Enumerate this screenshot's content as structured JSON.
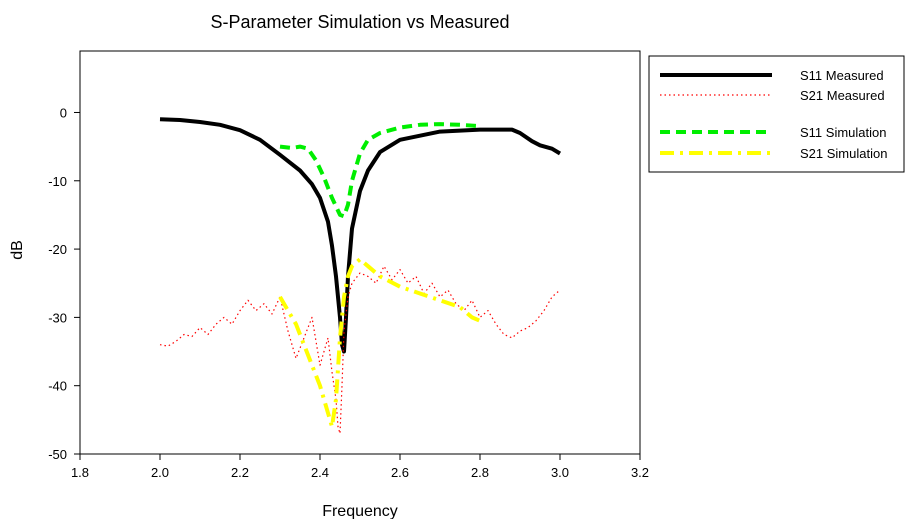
{
  "chart_data": {
    "type": "line",
    "title": "S-Parameter Simulation vs Measured",
    "xlabel": "Frequency",
    "ylabel": "dB",
    "xlim": [
      1.8,
      3.2
    ],
    "ylim": [
      -50,
      9
    ],
    "xticks": [
      "1.8",
      "2.0",
      "2.2",
      "2.4",
      "2.6",
      "2.8",
      "3.0",
      "3.2"
    ],
    "xtick_values": [
      1.8,
      2.0,
      2.2,
      2.4,
      2.6,
      2.8,
      3.0,
      3.2
    ],
    "yticks": [
      "0",
      "-10",
      "-20",
      "-30",
      "-40",
      "-50"
    ],
    "ytick_values": [
      0,
      -10,
      -20,
      -30,
      -40,
      -50
    ],
    "grid": false,
    "legend_position": "right-outside",
    "series": [
      {
        "name": "S11 Measured",
        "color": "#000000",
        "label_color": "#ff0000",
        "style": "solid",
        "x": [
          2.0,
          2.05,
          2.1,
          2.15,
          2.2,
          2.25,
          2.3,
          2.35,
          2.38,
          2.4,
          2.42,
          2.43,
          2.44,
          2.45,
          2.455,
          2.46,
          2.465,
          2.47,
          2.48,
          2.5,
          2.52,
          2.55,
          2.6,
          2.7,
          2.8,
          2.88,
          2.9,
          2.93,
          2.95,
          2.98,
          3.0
        ],
        "y": [
          -1,
          -1.1,
          -1.4,
          -1.8,
          -2.6,
          -4,
          -6.2,
          -8.5,
          -10.5,
          -12.5,
          -16,
          -19.5,
          -24,
          -30,
          -34,
          -35,
          -30,
          -24,
          -17,
          -11.5,
          -8.5,
          -5.8,
          -4,
          -2.8,
          -2.5,
          -2.5,
          -3,
          -4.2,
          -4.8,
          -5.3,
          -6
        ]
      },
      {
        "name": "S21 Measured",
        "color": "#ff0000",
        "label_color": "#000000",
        "style": "dotted",
        "x": [
          2.0,
          2.02,
          2.04,
          2.06,
          2.08,
          2.1,
          2.12,
          2.14,
          2.16,
          2.18,
          2.2,
          2.22,
          2.24,
          2.26,
          2.28,
          2.3,
          2.32,
          2.34,
          2.36,
          2.38,
          2.4,
          2.41,
          2.42,
          2.43,
          2.44,
          2.445,
          2.45,
          2.455,
          2.46,
          2.47,
          2.48,
          2.5,
          2.52,
          2.54,
          2.56,
          2.58,
          2.6,
          2.62,
          2.64,
          2.66,
          2.68,
          2.7,
          2.72,
          2.74,
          2.76,
          2.78,
          2.8,
          2.82,
          2.84,
          2.86,
          2.88,
          2.9,
          2.92,
          2.94,
          2.96,
          2.98,
          3.0
        ],
        "y": [
          -34,
          -34.2,
          -33.5,
          -32.5,
          -32.8,
          -31.5,
          -32.5,
          -31,
          -30,
          -31,
          -29,
          -27.5,
          -29,
          -28,
          -29.5,
          -27,
          -32,
          -36,
          -33,
          -30,
          -37,
          -35,
          -33,
          -38,
          -42,
          -46,
          -47,
          -40,
          -32,
          -27,
          -25,
          -23.5,
          -24,
          -25,
          -22.5,
          -24.5,
          -23,
          -25,
          -24,
          -26.5,
          -25,
          -27,
          -26,
          -28,
          -29,
          -27.5,
          -30,
          -29,
          -31,
          -32.5,
          -33,
          -32,
          -31.5,
          -30.5,
          -29,
          -27,
          -26
        ]
      },
      {
        "name": "S11 Simulation",
        "color": "#00ee00",
        "label_color": "#000000",
        "style": "dashed",
        "x": [
          2.3,
          2.33,
          2.35,
          2.37,
          2.39,
          2.41,
          2.43,
          2.45,
          2.46,
          2.47,
          2.48,
          2.5,
          2.52,
          2.55,
          2.6,
          2.65,
          2.7,
          2.75,
          2.8
        ],
        "y": [
          -5,
          -5.2,
          -5,
          -5.3,
          -7,
          -9.5,
          -12.5,
          -15,
          -15.2,
          -13.5,
          -10,
          -6,
          -4,
          -3,
          -2.2,
          -1.8,
          -1.7,
          -1.8,
          -2
        ]
      },
      {
        "name": "S21 Simulation",
        "color": "#ffff00",
        "label_color": "#000000",
        "style": "dashdot",
        "x": [
          2.3,
          2.32,
          2.34,
          2.36,
          2.38,
          2.4,
          2.42,
          2.43,
          2.44,
          2.45,
          2.46,
          2.47,
          2.48,
          2.5,
          2.52,
          2.55,
          2.6,
          2.65,
          2.7,
          2.75,
          2.78,
          2.8
        ],
        "y": [
          -27,
          -29,
          -31,
          -34,
          -37,
          -40,
          -44,
          -46,
          -42,
          -33,
          -27,
          -24,
          -22.5,
          -21.5,
          -22.5,
          -24,
          -25.5,
          -26.5,
          -27.5,
          -28.5,
          -30,
          -30.5
        ]
      }
    ]
  }
}
